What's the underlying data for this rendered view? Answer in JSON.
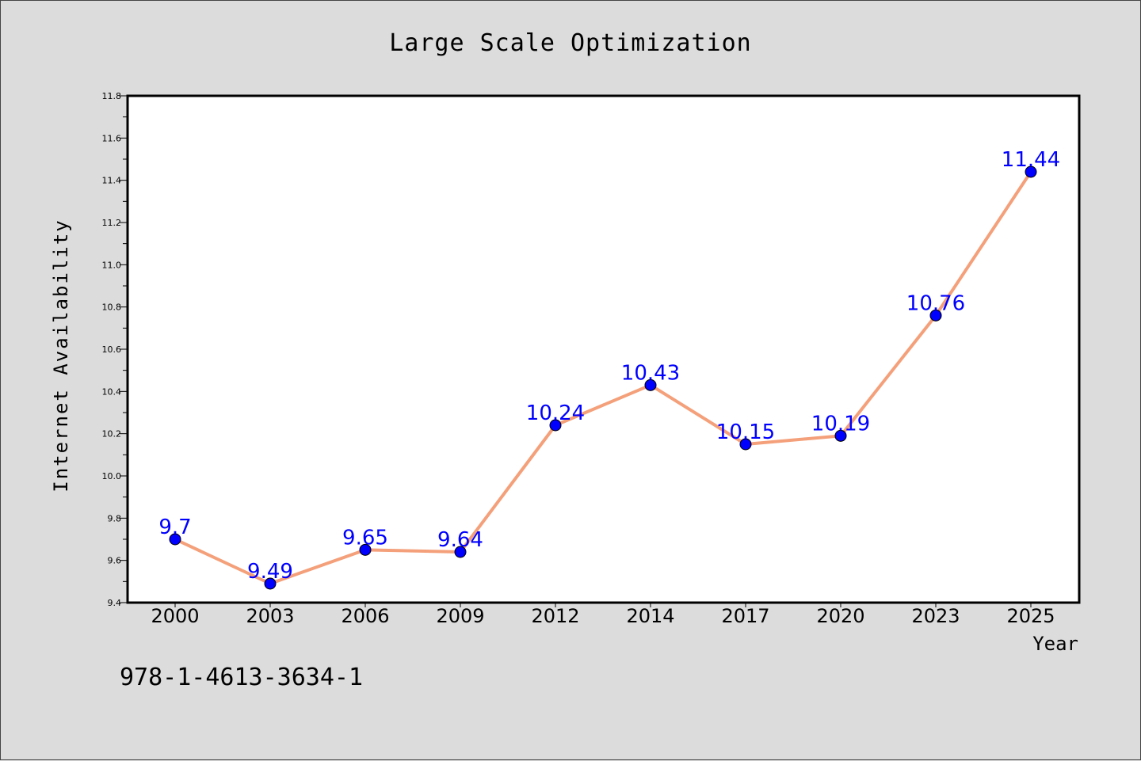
{
  "chart_data": {
    "type": "line",
    "title": "Large Scale Optimization",
    "xlabel": "Year",
    "ylabel": "Internet Availability",
    "categories": [
      "2000",
      "2003",
      "2006",
      "2009",
      "2012",
      "2014",
      "2017",
      "2020",
      "2023",
      "2025"
    ],
    "series": [
      {
        "values": [
          9.7,
          9.49,
          9.65,
          9.64,
          10.24,
          10.43,
          10.15,
          10.19,
          10.76,
          11.44
        ],
        "labels": [
          "9.7",
          "9.49",
          "9.65",
          "9.64",
          "10.24",
          "10.43",
          "10.15",
          "10.19",
          "10.76",
          "11.44"
        ],
        "line_color": "#f4a07a",
        "marker_color": "#0000ff"
      }
    ],
    "ylim": [
      9.4,
      11.8
    ],
    "yticks": [
      "9.4",
      "9.6",
      "9.8",
      "10.0",
      "10.2",
      "10.4",
      "10.6",
      "10.8",
      "11.0",
      "11.2",
      "11.4",
      "11.6",
      "11.8"
    ],
    "grid": false,
    "legend": "none"
  },
  "footer_text": "978-1-4613-3634-1",
  "colors": {
    "background": "#dcdcdc",
    "plot_area": "#ffffff",
    "data_label": "#0000ff"
  }
}
